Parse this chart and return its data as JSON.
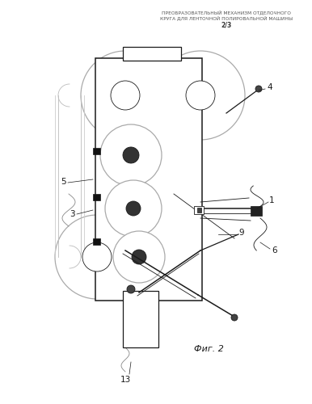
{
  "title_line1": "ПРЕОБРАЗОВАТЕЛЬНЫЙ МЕХАНИЗМ ОТДЕЛОЧНОГО",
  "title_line2": "КРУГА ДЛЯ ЛЕНТОЧНОЙ ПОЛИРОВАЛЬНОЙ МАШИНЫ",
  "title_line3": "2/3",
  "fig_label": "Фиг. 2",
  "bg_color": "#ffffff",
  "lc": "#1a1a1a",
  "gray_roller": "#d8d8d8",
  "gray_roller_edge": "#999999",
  "dark_dot": "#333333"
}
